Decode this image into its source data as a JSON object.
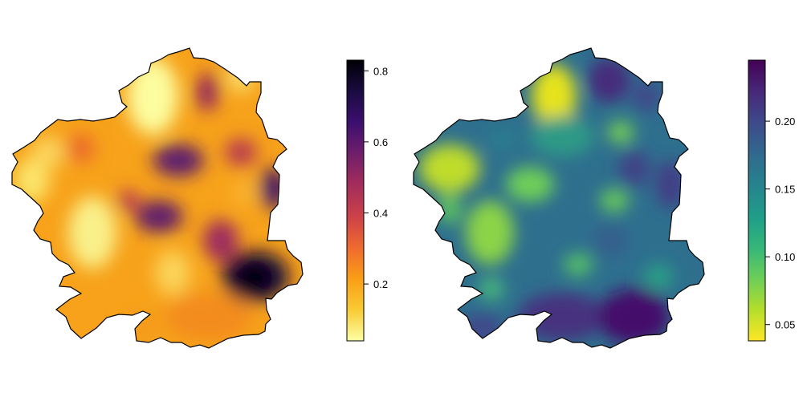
{
  "maps": [
    {
      "name": "left-map",
      "palette": "inferno-reversed",
      "colorbar": {
        "ticks": [
          {
            "value": 0.2,
            "label": "0.2"
          },
          {
            "value": 0.4,
            "label": "0.4"
          },
          {
            "value": 0.6,
            "label": "0.6"
          },
          {
            "value": 0.8,
            "label": "0.8"
          }
        ],
        "range": [
          0.04,
          0.83
        ],
        "colors": [
          "#fcffa4",
          "#f9cb35",
          "#fa9e16",
          "#f06b2e",
          "#cc4248",
          "#a22c5c",
          "#6e1e6b",
          "#3b0f6f",
          "#1a0b40",
          "#000004"
        ]
      }
    },
    {
      "name": "right-map",
      "palette": "viridis-reversed",
      "colorbar": {
        "ticks": [
          {
            "value": 0.05,
            "label": "0.05"
          },
          {
            "value": 0.1,
            "label": "0.10"
          },
          {
            "value": 0.15,
            "label": "0.15"
          },
          {
            "value": 0.2,
            "label": "0.20"
          }
        ],
        "range": [
          0.038,
          0.245
        ],
        "colors": [
          "#fde725",
          "#b5de2b",
          "#6ece58",
          "#35b779",
          "#1f9e89",
          "#26828e",
          "#31688e",
          "#3e4989",
          "#482878",
          "#440154"
        ]
      }
    }
  ]
}
